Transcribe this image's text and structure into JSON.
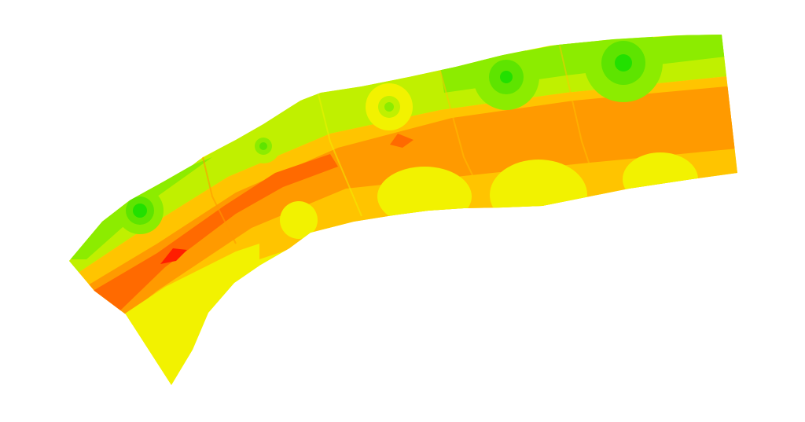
{
  "viewer": {
    "background": "#ffffff"
  },
  "contour_colors": {
    "green_bright": "#22e000",
    "green": "#5ee400",
    "green_light": "#8cec00",
    "lime": "#c0f000",
    "yellow": "#f2f200",
    "orange_light": "#ffc400",
    "orange": "#ff9a00",
    "orange_dark": "#ff6a00",
    "red": "#ff1e00"
  },
  "legend_present": false
}
